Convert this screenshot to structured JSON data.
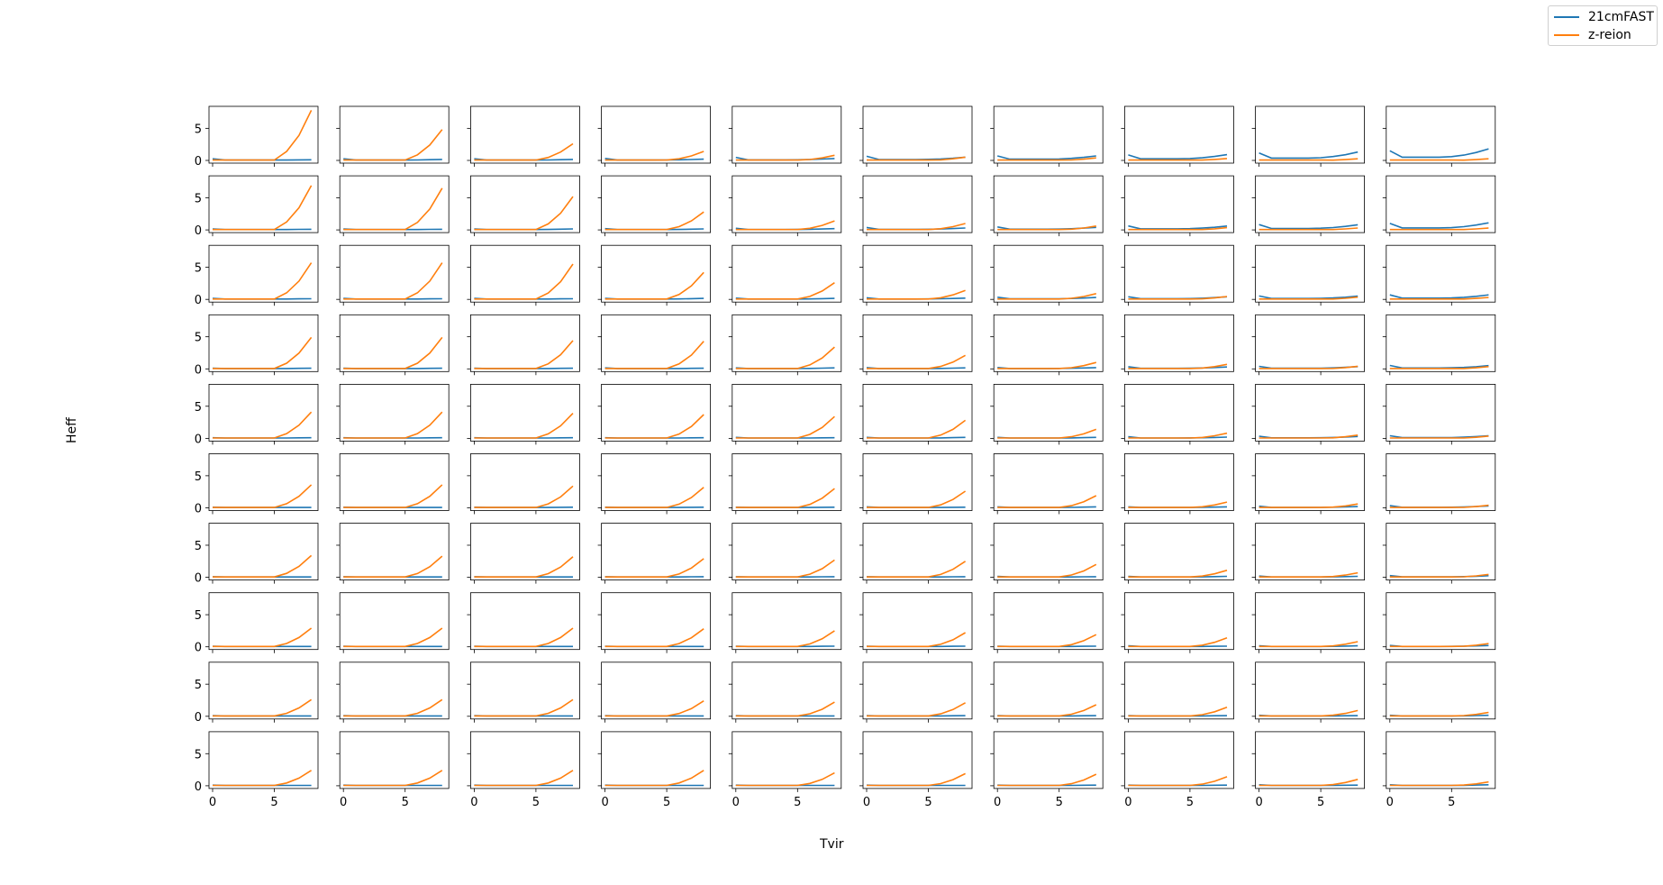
{
  "chart_data": {
    "type": "line",
    "layout": "10x10 grid of small multiples, shared x and y axes",
    "xlabel": "Tvir",
    "ylabel": "Heff",
    "xlim": [
      0,
      8
    ],
    "ylim": [
      0,
      8
    ],
    "xticks": [
      0,
      5
    ],
    "yticks": [
      0,
      5
    ],
    "x": [
      0,
      1,
      2,
      3,
      4,
      5,
      6,
      7,
      8
    ],
    "legend": {
      "placement": "top-right",
      "entries": [
        "21cmFAST",
        "z-reion"
      ]
    },
    "colors": {
      "21cmFAST": "#1f77b4",
      "z-reion": "#ff7f0e"
    },
    "series_params": {
      "z_reion_final_by_row_col": [
        [
          7.8,
          4.8,
          2.6,
          1.4,
          0.8,
          0.5,
          0.4,
          0.3,
          0.25,
          0.25
        ],
        [
          6.9,
          6.5,
          5.2,
          2.8,
          1.4,
          1.0,
          0.6,
          0.35,
          0.3,
          0.3
        ],
        [
          5.7,
          5.7,
          5.5,
          4.2,
          2.6,
          1.4,
          0.9,
          0.45,
          0.35,
          0.3
        ],
        [
          4.9,
          4.9,
          4.4,
          4.3,
          3.4,
          2.1,
          1.0,
          0.7,
          0.4,
          0.35
        ],
        [
          4.1,
          4.1,
          3.9,
          3.7,
          3.4,
          2.8,
          1.4,
          0.8,
          0.5,
          0.35
        ],
        [
          3.6,
          3.6,
          3.4,
          3.2,
          3.0,
          2.6,
          1.9,
          0.9,
          0.6,
          0.4
        ],
        [
          3.4,
          3.3,
          3.2,
          2.9,
          2.7,
          2.5,
          2.0,
          1.1,
          0.7,
          0.45
        ],
        [
          2.9,
          2.9,
          2.9,
          2.8,
          2.5,
          2.2,
          1.9,
          1.4,
          0.8,
          0.5
        ],
        [
          2.6,
          2.6,
          2.6,
          2.4,
          2.2,
          2.1,
          1.8,
          1.4,
          0.9,
          0.6
        ],
        [
          2.4,
          2.4,
          2.4,
          2.4,
          2.0,
          1.9,
          1.8,
          1.4,
          1.0,
          0.6
        ]
      ],
      "fast_final_by_row_col": [
        [
          0.1,
          0.15,
          0.15,
          0.2,
          0.3,
          0.5,
          0.7,
          0.9,
          1.3,
          1.8
        ],
        [
          0.1,
          0.1,
          0.15,
          0.15,
          0.2,
          0.3,
          0.4,
          0.6,
          0.8,
          1.1
        ],
        [
          0.1,
          0.1,
          0.1,
          0.15,
          0.15,
          0.2,
          0.3,
          0.4,
          0.5,
          0.7
        ],
        [
          0.1,
          0.1,
          0.1,
          0.1,
          0.15,
          0.15,
          0.2,
          0.3,
          0.35,
          0.5
        ],
        [
          0.1,
          0.1,
          0.1,
          0.1,
          0.1,
          0.15,
          0.15,
          0.2,
          0.3,
          0.4
        ],
        [
          0.05,
          0.05,
          0.1,
          0.1,
          0.1,
          0.1,
          0.15,
          0.15,
          0.2,
          0.3
        ],
        [
          0.05,
          0.05,
          0.05,
          0.1,
          0.1,
          0.1,
          0.1,
          0.15,
          0.15,
          0.25
        ],
        [
          0.05,
          0.05,
          0.05,
          0.05,
          0.1,
          0.1,
          0.1,
          0.1,
          0.15,
          0.2
        ],
        [
          0.05,
          0.05,
          0.05,
          0.05,
          0.05,
          0.1,
          0.1,
          0.1,
          0.1,
          0.15
        ],
        [
          0.05,
          0.05,
          0.05,
          0.05,
          0.05,
          0.05,
          0.1,
          0.1,
          0.1,
          0.15
        ]
      ],
      "fast_start_spike_by_row_col": [
        [
          0.2,
          0.2,
          0.2,
          0.25,
          0.4,
          0.5,
          0.5,
          0.6,
          0.8,
          1.0
        ],
        [
          0.1,
          0.1,
          0.1,
          0.15,
          0.2,
          0.3,
          0.35,
          0.45,
          0.6,
          0.7
        ],
        [
          0.1,
          0.1,
          0.1,
          0.1,
          0.15,
          0.2,
          0.25,
          0.3,
          0.4,
          0.5
        ],
        [
          0.05,
          0.05,
          0.05,
          0.1,
          0.1,
          0.15,
          0.15,
          0.25,
          0.3,
          0.4
        ],
        [
          0.05,
          0.05,
          0.05,
          0.05,
          0.1,
          0.1,
          0.1,
          0.2,
          0.25,
          0.3
        ],
        [
          0.05,
          0.05,
          0.05,
          0.05,
          0.05,
          0.1,
          0.1,
          0.1,
          0.2,
          0.25
        ],
        [
          0.05,
          0.05,
          0.05,
          0.05,
          0.05,
          0.05,
          0.1,
          0.1,
          0.15,
          0.2
        ],
        [
          0.05,
          0.05,
          0.05,
          0.05,
          0.05,
          0.05,
          0.05,
          0.1,
          0.1,
          0.15
        ],
        [
          0.05,
          0.05,
          0.05,
          0.05,
          0.05,
          0.05,
          0.05,
          0.05,
          0.1,
          0.1
        ],
        [
          0.05,
          0.05,
          0.05,
          0.05,
          0.05,
          0.05,
          0.05,
          0.05,
          0.1,
          0.1
        ]
      ]
    }
  },
  "labels": {
    "xlabel": "Tvir",
    "ylabel": "Heff",
    "legend_fast": "21cmFAST",
    "legend_zreion": "z-reion"
  }
}
